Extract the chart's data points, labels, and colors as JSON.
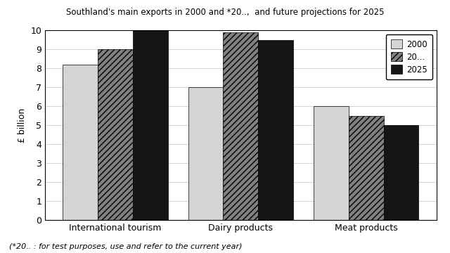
{
  "title": "Southland's main exports in 2000 and *20..,  and future projections for 2025",
  "categories": [
    "International tourism",
    "Dairy products",
    "Meat products"
  ],
  "series": {
    "2000": [
      8.2,
      7.0,
      6.0
    ],
    "20...": [
      9.0,
      9.9,
      5.5
    ],
    "2025": [
      10.0,
      9.5,
      5.0
    ]
  },
  "ylabel": "£ billion",
  "ylim": [
    0,
    10
  ],
  "yticks": [
    0,
    1,
    2,
    3,
    4,
    5,
    6,
    7,
    8,
    9,
    10
  ],
  "footnote": "(*20.. : for test purposes, use and refer to the current year)",
  "bar_width": 0.28,
  "colors": {
    "2000": "#d4d4d4",
    "20...": "#808080",
    "2025": "#151515"
  },
  "hatches": {
    "2000": "",
    "20...": "////",
    "2025": ""
  },
  "legend_labels": [
    "2000",
    "20...",
    "2025"
  ],
  "background_color": "#ffffff"
}
